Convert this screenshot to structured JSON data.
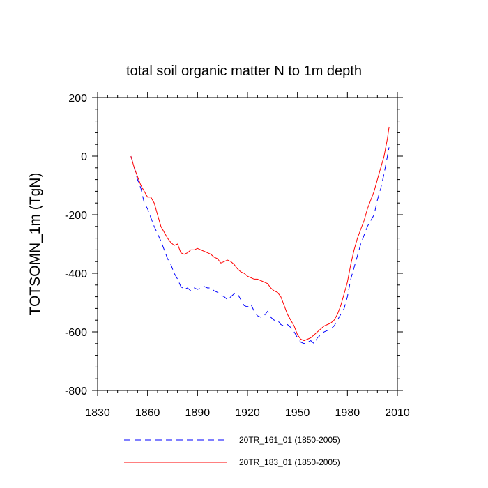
{
  "chart_data": {
    "type": "line",
    "title": "total soil organic matter N to 1m depth",
    "xlabel": "",
    "ylabel": "TOTSOMN_1m  (TgN)",
    "xlim": [
      1830,
      2010
    ],
    "ylim": [
      -800,
      200
    ],
    "xticks": [
      1830,
      1860,
      1890,
      1920,
      1950,
      1980,
      2010
    ],
    "yticks": [
      200,
      0,
      -200,
      -400,
      -600,
      -800
    ],
    "xtick_labels": [
      "1830",
      "1860",
      "1890",
      "1920",
      "1950",
      "1980",
      "2010"
    ],
    "ytick_labels": [
      "200",
      "0",
      "-200",
      "-400",
      "-600",
      "-800"
    ],
    "legend_position": "bottom",
    "series": [
      {
        "name": "20TR_161_01 (1850-2005)",
        "color": "#0000ff",
        "dash": "dashed",
        "x": [
          1850,
          1852,
          1854,
          1856,
          1858,
          1860,
          1862,
          1864,
          1866,
          1868,
          1870,
          1872,
          1874,
          1876,
          1878,
          1880,
          1882,
          1884,
          1886,
          1888,
          1890,
          1892,
          1894,
          1896,
          1898,
          1900,
          1902,
          1904,
          1906,
          1908,
          1910,
          1912,
          1914,
          1916,
          1918,
          1920,
          1922,
          1924,
          1926,
          1928,
          1930,
          1932,
          1934,
          1936,
          1938,
          1940,
          1942,
          1944,
          1946,
          1948,
          1950,
          1952,
          1954,
          1956,
          1958,
          1960,
          1962,
          1964,
          1966,
          1968,
          1970,
          1972,
          1974,
          1976,
          1978,
          1980,
          1982,
          1984,
          1986,
          1988,
          1990,
          1992,
          1994,
          1996,
          1998,
          2000,
          2002,
          2004,
          2005
        ],
        "values": [
          0,
          -40,
          -80,
          -110,
          -160,
          -180,
          -210,
          -240,
          -265,
          -290,
          -320,
          -350,
          -370,
          -400,
          -420,
          -445,
          -455,
          -450,
          -460,
          -450,
          -455,
          -450,
          -445,
          -450,
          -450,
          -460,
          -465,
          -475,
          -480,
          -490,
          -480,
          -470,
          -470,
          -490,
          -510,
          -515,
          -505,
          -530,
          -545,
          -550,
          -545,
          -530,
          -550,
          -560,
          -560,
          -575,
          -580,
          -575,
          -585,
          -600,
          -620,
          -635,
          -640,
          -635,
          -630,
          -640,
          -620,
          -610,
          -600,
          -595,
          -590,
          -580,
          -560,
          -540,
          -520,
          -480,
          -420,
          -380,
          -340,
          -300,
          -270,
          -240,
          -220,
          -200,
          -150,
          -110,
          -60,
          0,
          30
        ]
      },
      {
        "name": "20TR_183_01 (1850-2005)",
        "color": "#ff0000",
        "dash": "solid",
        "x": [
          1850,
          1852,
          1854,
          1856,
          1858,
          1860,
          1862,
          1864,
          1866,
          1868,
          1870,
          1872,
          1874,
          1876,
          1878,
          1880,
          1882,
          1884,
          1886,
          1888,
          1890,
          1892,
          1894,
          1896,
          1898,
          1900,
          1902,
          1904,
          1906,
          1908,
          1910,
          1912,
          1914,
          1916,
          1918,
          1920,
          1922,
          1924,
          1926,
          1928,
          1930,
          1932,
          1934,
          1936,
          1938,
          1940,
          1942,
          1944,
          1946,
          1948,
          1950,
          1952,
          1954,
          1956,
          1958,
          1960,
          1962,
          1964,
          1966,
          1968,
          1970,
          1972,
          1974,
          1976,
          1978,
          1980,
          1982,
          1984,
          1986,
          1988,
          1990,
          1992,
          1994,
          1996,
          1998,
          2000,
          2002,
          2004,
          2005
        ],
        "values": [
          0,
          -40,
          -70,
          -100,
          -120,
          -140,
          -140,
          -160,
          -200,
          -240,
          -260,
          -280,
          -295,
          -305,
          -300,
          -330,
          -335,
          -330,
          -320,
          -320,
          -315,
          -320,
          -325,
          -330,
          -335,
          -345,
          -350,
          -365,
          -360,
          -355,
          -360,
          -370,
          -385,
          -395,
          -400,
          -410,
          -415,
          -420,
          -420,
          -425,
          -430,
          -435,
          -450,
          -460,
          -465,
          -480,
          -510,
          -540,
          -560,
          -580,
          -610,
          -625,
          -630,
          -625,
          -620,
          -610,
          -600,
          -590,
          -580,
          -575,
          -570,
          -560,
          -540,
          -510,
          -470,
          -430,
          -370,
          -320,
          -280,
          -250,
          -220,
          -180,
          -150,
          -120,
          -80,
          -40,
          0,
          60,
          100
        ]
      }
    ]
  }
}
